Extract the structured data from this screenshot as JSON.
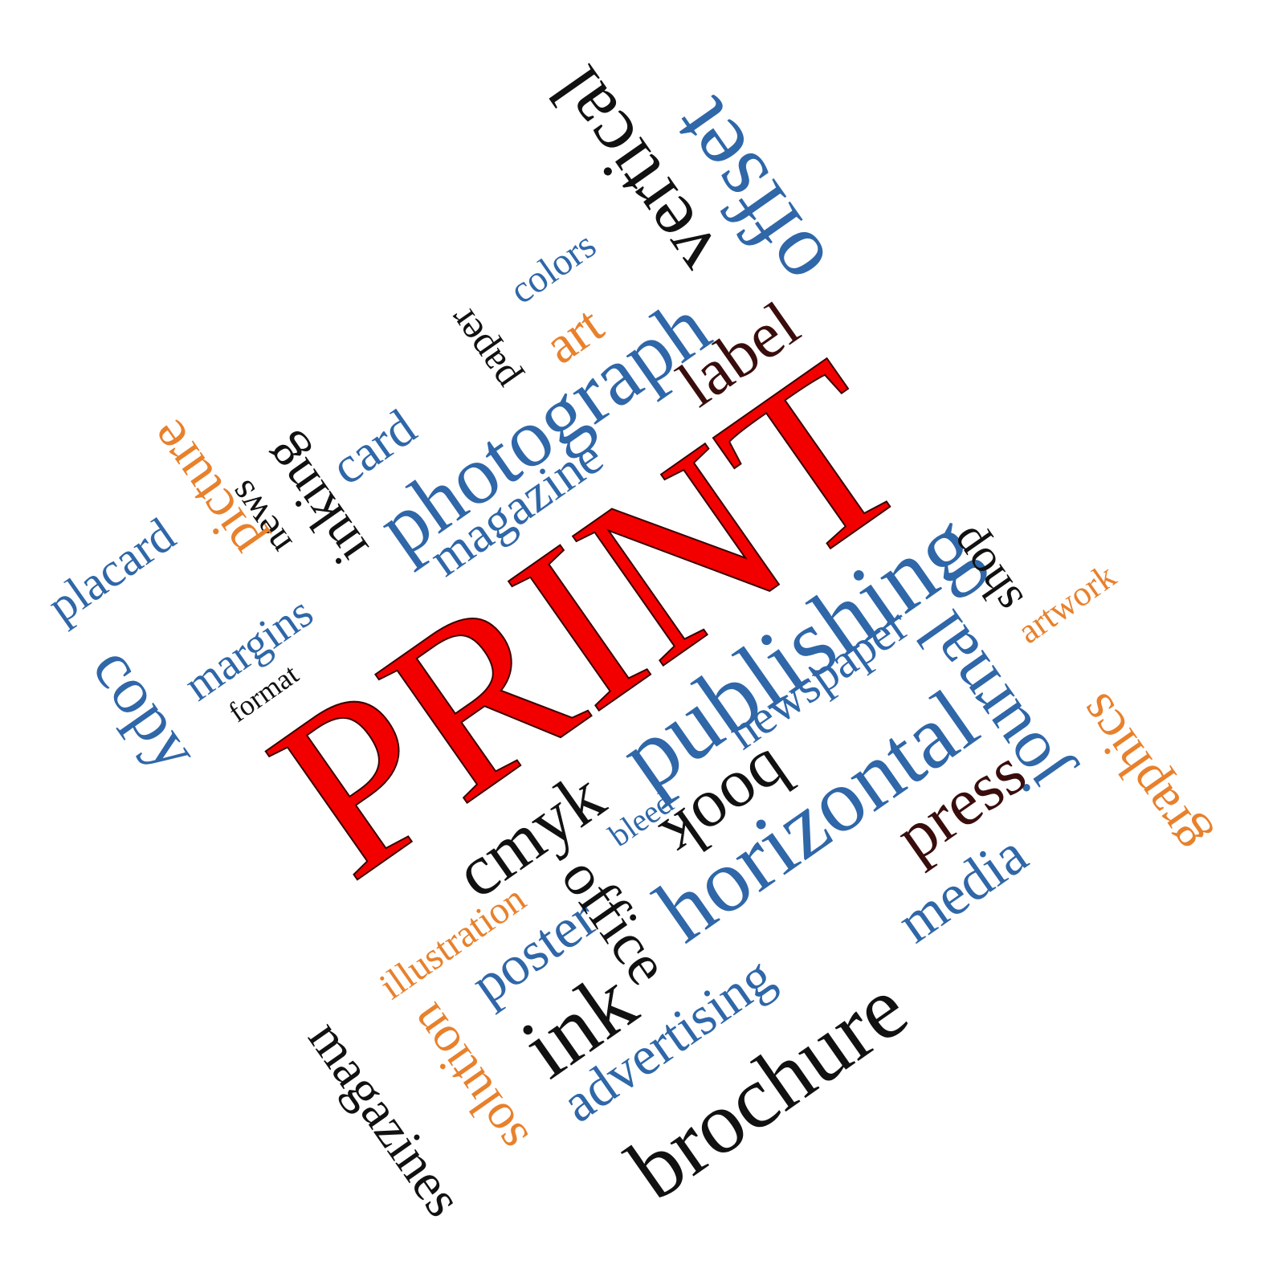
{
  "words": {
    "print": "PRINT",
    "publishing": "publishing",
    "photograph": "photograph",
    "horizontal": "horizontal",
    "offset": "offset",
    "vertical": "vertical",
    "journal": "journal",
    "brochure": "brochure",
    "newspaper": "newspaper",
    "magazine": "magazine",
    "label": "label",
    "copy": "copy",
    "placard": "placard",
    "margins": "margins",
    "format": "format",
    "picture": "picture",
    "news": "news",
    "inking": "inking",
    "card": "card",
    "paper": "paper",
    "art": "art",
    "colors": "colors",
    "shop": "shop",
    "artwork": "artwork",
    "graphics": "graphics",
    "press": "press",
    "media": "media",
    "book": "book",
    "bleed": "bleed",
    "cmyk": "cmyk",
    "office": "office",
    "poster": "poster",
    "illustration": "illustration",
    "ink": "ink",
    "advertising": "advertising",
    "solution": "solution",
    "magazines": "magazines"
  },
  "colors": {
    "blue": "#2f67a8",
    "black": "#111111",
    "orange": "#e8812c",
    "red": "#f20000"
  }
}
